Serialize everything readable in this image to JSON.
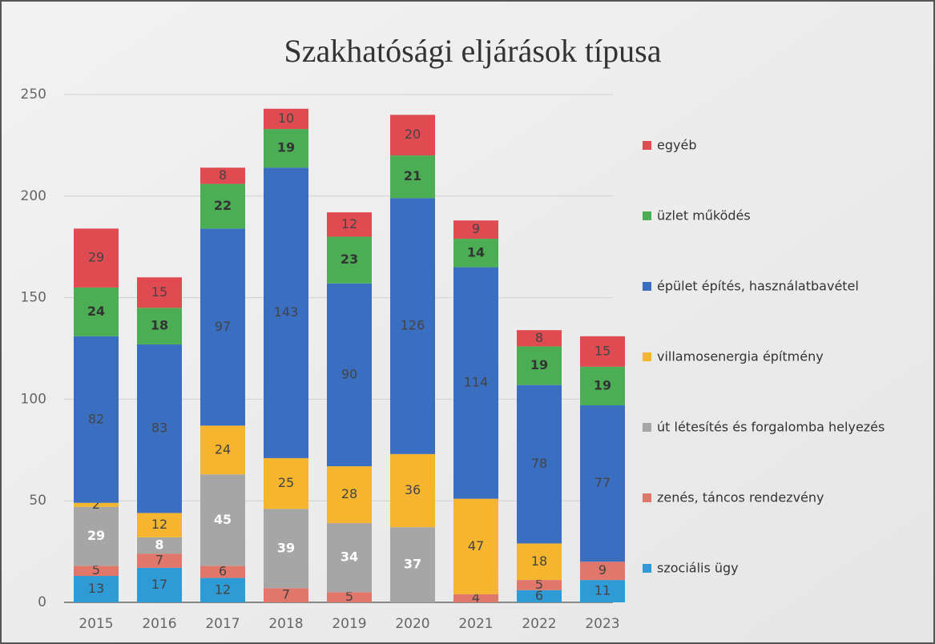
{
  "chart_data": {
    "type": "stacked_bar",
    "title": "Szakhatósági eljárások típusa",
    "categories": [
      "2015",
      "2016",
      "2017",
      "2018",
      "2019",
      "2020",
      "2021",
      "2022",
      "2023"
    ],
    "series": [
      {
        "name": "szociális ügy",
        "color": "#2e9ad6",
        "values": [
          13,
          17,
          12,
          null,
          null,
          null,
          null,
          6,
          11
        ]
      },
      {
        "name": "zenés, táncos rendezvény",
        "color": "#e0776a",
        "values": [
          5,
          7,
          6,
          7,
          5,
          null,
          4,
          5,
          9
        ]
      },
      {
        "name": "út létesítés és forgalomba helyezés",
        "color": "#a6a6a6",
        "values": [
          29,
          8,
          45,
          39,
          34,
          37,
          null,
          null,
          null
        ]
      },
      {
        "name": "villamosenergia építmény",
        "color": "#f5b52f",
        "values": [
          2,
          12,
          24,
          25,
          28,
          36,
          47,
          18,
          null
        ]
      },
      {
        "name": "épület építés, használatbavétel",
        "color": "#3a6ec0",
        "values": [
          82,
          83,
          97,
          143,
          90,
          126,
          114,
          78,
          77
        ]
      },
      {
        "name": "üzlet működés",
        "color": "#4cae54",
        "values": [
          24,
          18,
          22,
          19,
          23,
          21,
          14,
          19,
          19
        ]
      },
      {
        "name": "egyéb",
        "color": "#e04b52",
        "values": [
          29,
          15,
          8,
          10,
          12,
          20,
          9,
          8,
          15
        ]
      }
    ],
    "ylim": [
      0,
      250
    ],
    "yticks": [
      0,
      50,
      100,
      150,
      200,
      250
    ],
    "grid": true,
    "legend": "right"
  }
}
